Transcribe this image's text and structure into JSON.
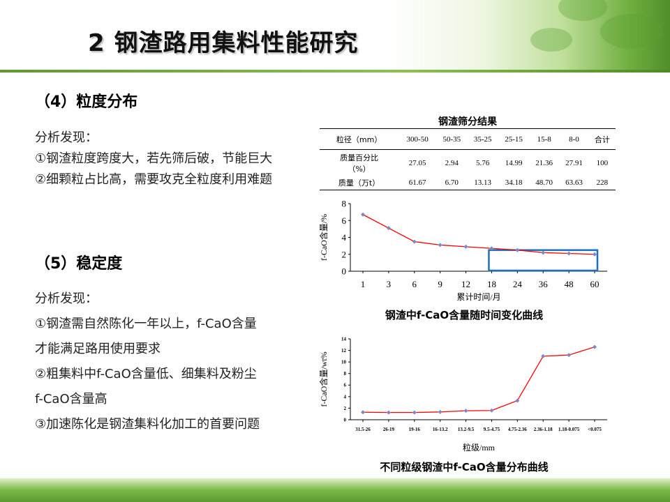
{
  "title": "2 钢渣路用集料性能研究",
  "sections": [
    {
      "heading": "（4）粒度分布",
      "intro": "分析发现：",
      "lines": [
        "①钢渣粒度跨度大，若先筛后破，节能巨大",
        "②细颗粒占比高，需要攻克全粒度利用难题"
      ]
    },
    {
      "heading": "（5）稳定度",
      "intro": "分析发现：",
      "lines": [
        "①钢渣需自然陈化一年以上，f-CaO含量",
        "才能满足路用使用要求",
        "②粗集料中f-CaO含量低、细集料及粉尘",
        "f-CaO含量高",
        "③加速陈化是钢渣集料化加工的首要问题"
      ]
    }
  ],
  "table": {
    "title": "钢渣筛分结果",
    "header": [
      "粒径（mm）",
      "300-50",
      "50-35",
      "35-25",
      "25-15",
      "15-8",
      "8-0",
      "合计"
    ],
    "rows": [
      {
        "label_line1": "质量百分比",
        "label_line2": "（%）",
        "values": [
          "27.05",
          "2.94",
          "5.76",
          "14.99",
          "21.36",
          "27.91",
          "100"
        ]
      },
      {
        "label_line1": "质量（万t）",
        "label_line2": "",
        "values": [
          "61.67",
          "6.70",
          "13.13",
          "34.18",
          "48.70",
          "63.63",
          "228"
        ]
      }
    ]
  },
  "chart_data": [
    {
      "type": "line",
      "title": "钢渣中f-CaO含量随时间变化曲线",
      "xlabel": "累计时间/月",
      "ylabel": "f-CaO含量/%",
      "categories": [
        "1",
        "3",
        "6",
        "9",
        "12",
        "18",
        "24",
        "36",
        "48",
        "60"
      ],
      "values": [
        6.7,
        5.1,
        3.5,
        3.1,
        2.9,
        2.7,
        2.5,
        2.2,
        2.1,
        2.0
      ],
      "yticks": [
        "0",
        "2",
        "4",
        "6",
        "8"
      ],
      "ylim": [
        0,
        8
      ],
      "highlight_box_color": "#1f6fc0",
      "line_color": "#ff0000",
      "marker_color": "#7f86c4"
    },
    {
      "type": "line",
      "title": "不同粒级钢渣中f-CaO含量分布曲线",
      "xlabel": "粒级/mm",
      "ylabel": "f-CaO含量/wt%",
      "categories": [
        "31.5-26",
        "26-19",
        "19-16",
        "16-13.2",
        "13.2-9.5",
        "9.5-4.75",
        "4.75-2.36",
        "2.36-1.18",
        "1.18-0.075",
        "<0.075"
      ],
      "values": [
        1.3,
        1.25,
        1.25,
        1.35,
        1.55,
        1.6,
        3.3,
        11.0,
        11.2,
        12.6
      ],
      "yticks": [
        "0",
        "2",
        "4",
        "6",
        "8",
        "10",
        "12",
        "14"
      ],
      "ylim": [
        0,
        14
      ],
      "line_color": "#ff0000",
      "marker_color": "#7f86c4"
    }
  ]
}
